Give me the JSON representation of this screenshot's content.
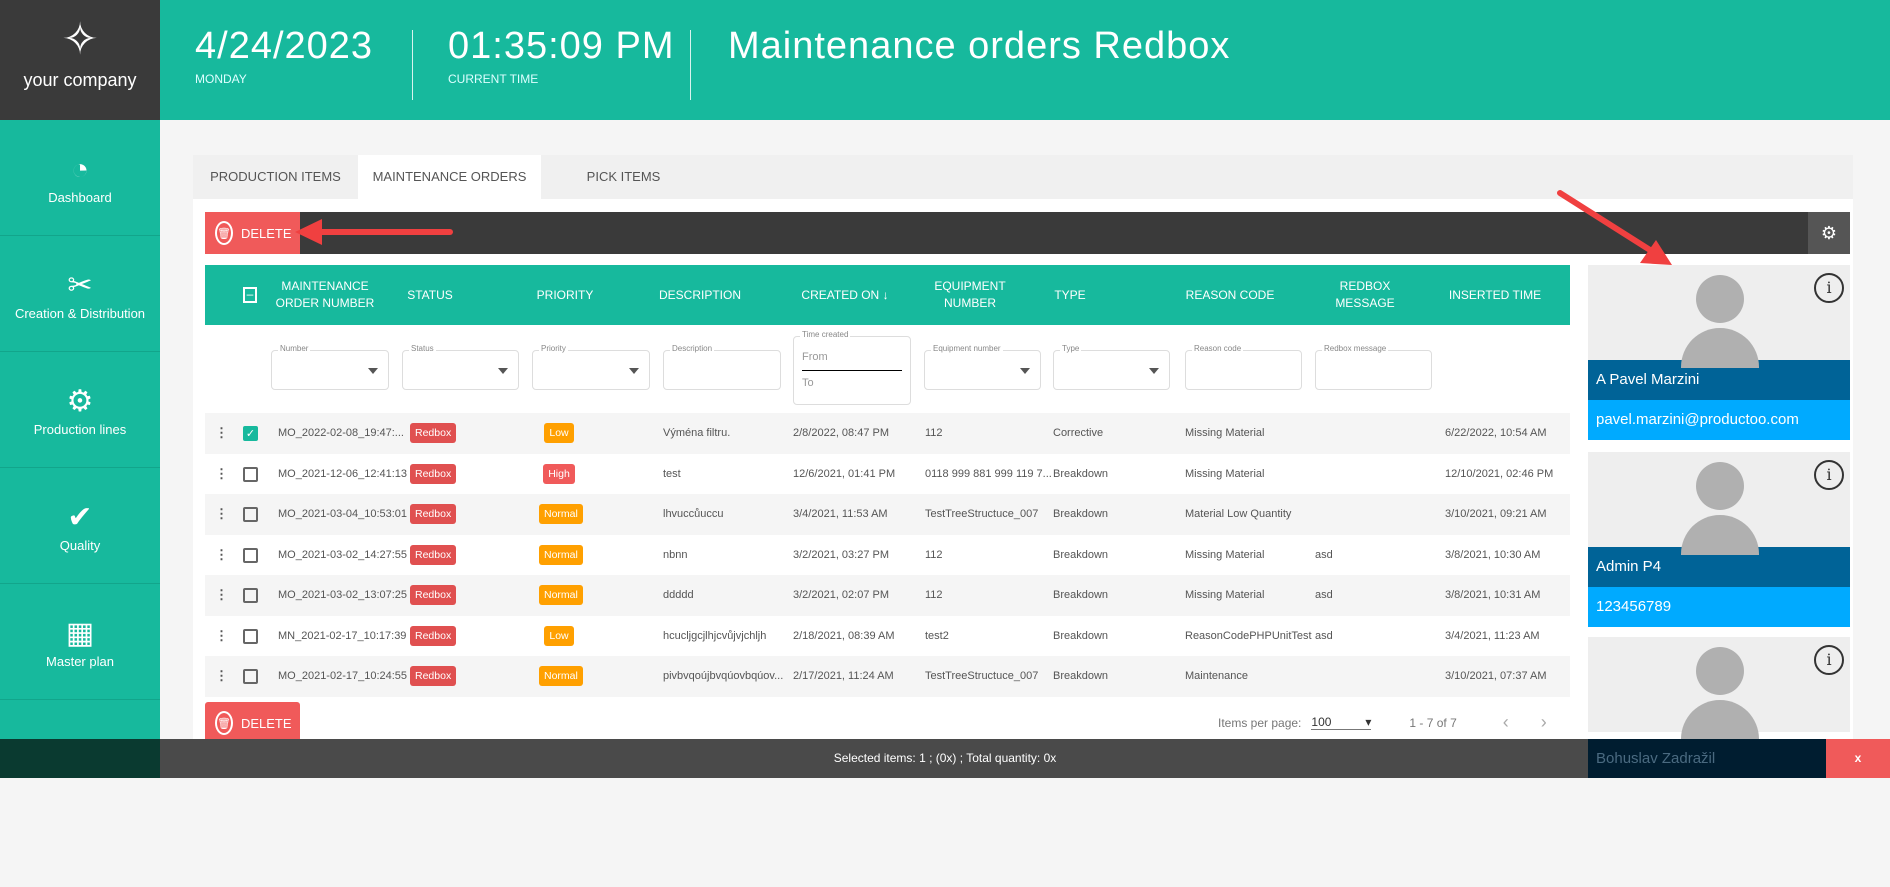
{
  "logo": {
    "name": "your company"
  },
  "header": {
    "date": "4/24/2023",
    "day": "MONDAY",
    "time": "01:35:09 PM",
    "time_label": "CURRENT TIME",
    "title": "Maintenance orders Redbox"
  },
  "sidebar": {
    "items": [
      {
        "label": "Dashboard",
        "icon": "gauge-icon"
      },
      {
        "label": "Creation & Distribution",
        "icon": "ticket-x-icon"
      },
      {
        "label": "Production lines",
        "icon": "conveyor-icon"
      },
      {
        "label": "Quality",
        "icon": "check-icon"
      },
      {
        "label": "Master plan",
        "icon": "calendar-icon"
      }
    ]
  },
  "tabs": [
    "PRODUCTION ITEMS",
    "MAINTENANCE ORDERS",
    "PICK ITEMS"
  ],
  "active_tab": "MAINTENANCE ORDERS",
  "toolbar": {
    "delete": "DELETE"
  },
  "columns": [
    "MAINTENANCE ORDER NUMBER",
    "STATUS",
    "PRIORITY",
    "DESCRIPTION",
    "CREATED ON",
    "EQUIPMENT NUMBER",
    "TYPE",
    "REASON CODE",
    "REDBOX MESSAGE",
    "INSERTED TIME"
  ],
  "filters": {
    "number": "Number",
    "status": "Status",
    "priority": "Priority",
    "description": "Description",
    "time_created": "Time created",
    "from": "From",
    "to": "To",
    "equipment": "Equipment number",
    "type": "Type",
    "reason": "Reason code",
    "redbox": "Redbox message"
  },
  "rows": [
    {
      "checked": true,
      "number": "MO_2022-02-08_19:47:...",
      "status": "Redbox",
      "priority": "Low",
      "description": "Výména filtru.",
      "created": "2/8/2022, 08:47 PM",
      "equipment": "112",
      "type": "Corrective",
      "reason": "Missing Material",
      "message": "",
      "inserted": "6/22/2022, 10:54 AM"
    },
    {
      "checked": false,
      "number": "MO_2021-12-06_12:41:13",
      "status": "Redbox",
      "priority": "High",
      "description": "test",
      "created": "12/6/2021, 01:41 PM",
      "equipment": "0118 999 881 999 119 7...",
      "type": "Breakdown",
      "reason": "Missing Material",
      "message": "",
      "inserted": "12/10/2021, 02:46 PM"
    },
    {
      "checked": false,
      "number": "MO_2021-03-04_10:53:01",
      "status": "Redbox",
      "priority": "Normal",
      "description": "lhvuccůuccu",
      "created": "3/4/2021, 11:53 AM",
      "equipment": "TestTreeStructuce_007",
      "type": "Breakdown",
      "reason": "Material Low Quantity",
      "message": "",
      "inserted": "3/10/2021, 09:21 AM"
    },
    {
      "checked": false,
      "number": "MO_2021-03-02_14:27:55",
      "status": "Redbox",
      "priority": "Normal",
      "description": "nbnn",
      "created": "3/2/2021, 03:27 PM",
      "equipment": "112",
      "type": "Breakdown",
      "reason": "Missing Material",
      "message": "asd",
      "inserted": "3/8/2021, 10:30 AM"
    },
    {
      "checked": false,
      "number": "MO_2021-03-02_13:07:25",
      "status": "Redbox",
      "priority": "Normal",
      "description": "ddddd",
      "created": "3/2/2021, 02:07 PM",
      "equipment": "112",
      "type": "Breakdown",
      "reason": "Missing Material",
      "message": "asd",
      "inserted": "3/8/2021, 10:31 AM"
    },
    {
      "checked": false,
      "number": "MN_2021-02-17_10:17:39",
      "status": "Redbox",
      "priority": "Low",
      "description": "hcucljgcjlhjcvůjvjchljh",
      "created": "2/18/2021, 08:39 AM",
      "equipment": "test2",
      "type": "Breakdown",
      "reason": "ReasonCodePHPUnitTest",
      "message": "asd",
      "inserted": "3/4/2021, 11:23 AM"
    },
    {
      "checked": false,
      "number": "MO_2021-02-17_10:24:55",
      "status": "Redbox",
      "priority": "Normal",
      "description": "pivbvqoújbvqúovbqúov...",
      "created": "2/17/2021, 11:24 AM",
      "equipment": "TestTreeStructuce_007",
      "type": "Breakdown",
      "reason": "Maintenance",
      "message": "",
      "inserted": "3/10/2021, 07:37 AM"
    }
  ],
  "pagination": {
    "label": "Items per page:",
    "per_page": "100",
    "range": "1 - 7 of 7"
  },
  "users": [
    {
      "name": "A Pavel Marzini",
      "contact": "pavel.marzini@productoo.com"
    },
    {
      "name": "Admin P4",
      "contact": "123456789"
    },
    {
      "name": "Bohuslav Zadražil"
    }
  ],
  "bottom": {
    "text": "Selected items: 1 ; (0x) ; Total quantity: 0x",
    "close": "x"
  },
  "colors": {
    "teal": "#17b99d",
    "redbox": "#e05050",
    "low": "#ffa000",
    "normal": "#ffa000",
    "high": "#f05a5a",
    "dark_blue": "#006397",
    "light_blue": "#00aaff"
  }
}
